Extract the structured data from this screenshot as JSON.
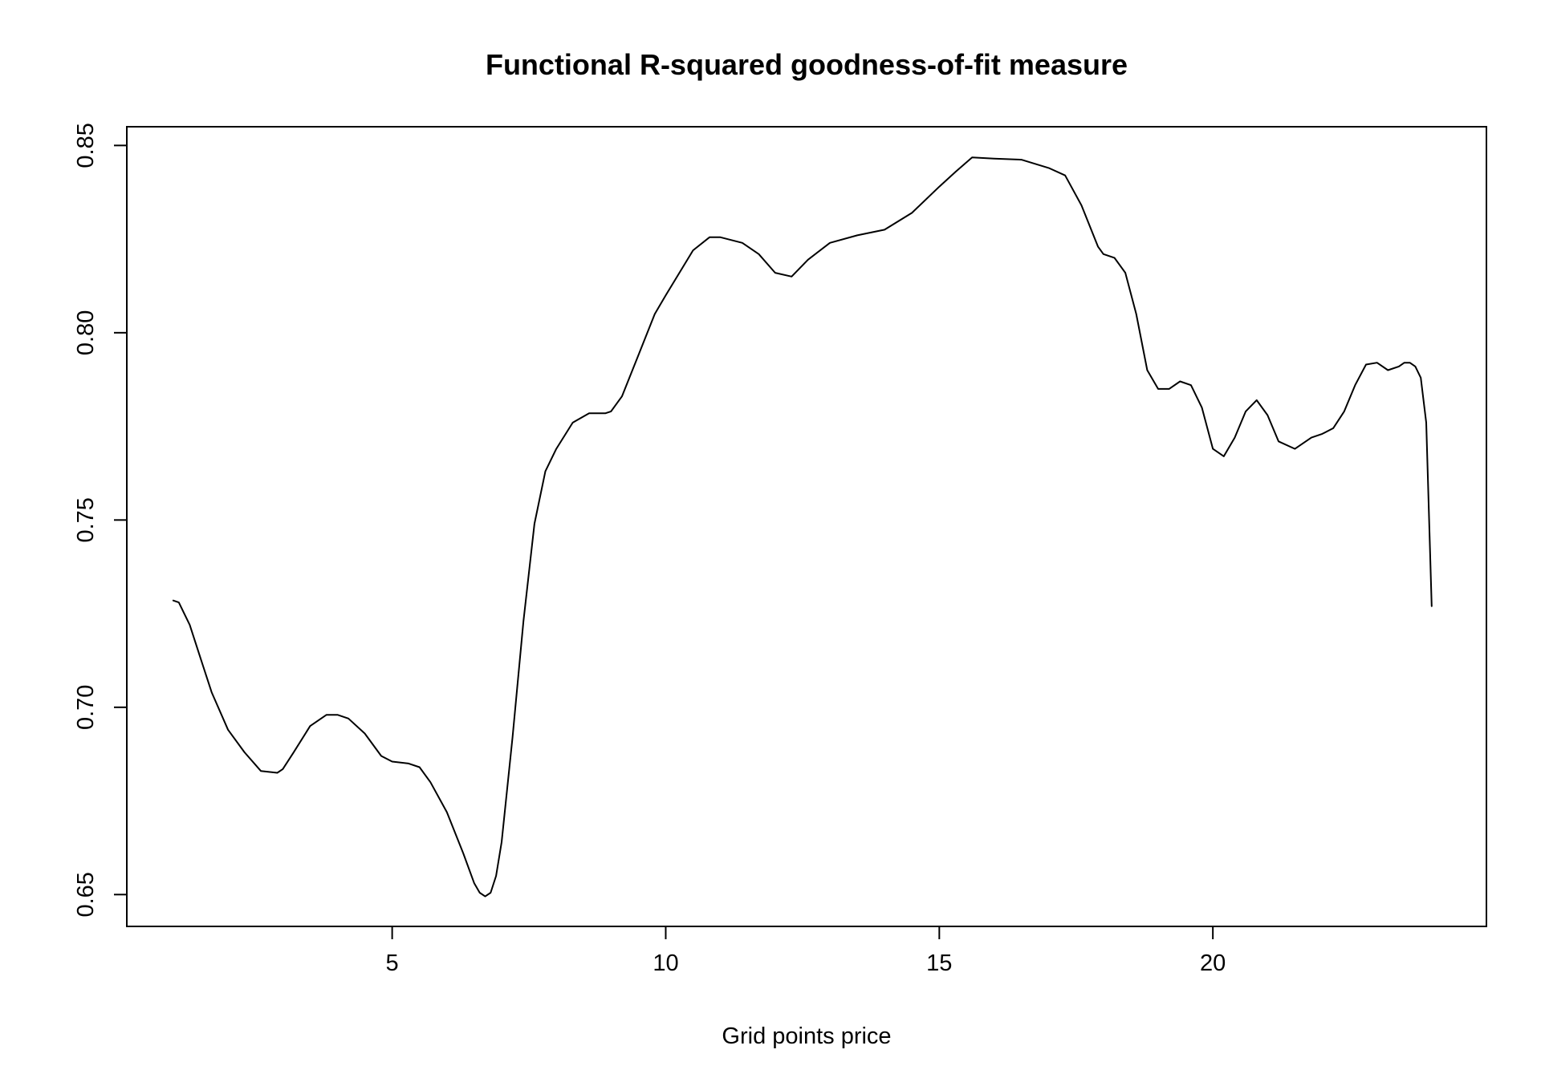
{
  "chart_data": {
    "type": "line",
    "title": "Functional R-squared goodness-of-fit measure",
    "xlabel": "Grid points price",
    "ylabel": "",
    "xlim": [
      0.15,
      25
    ],
    "ylim": [
      0.6415,
      0.855
    ],
    "grid": false,
    "legend": "none",
    "x_ticks": [
      5,
      10,
      15,
      20
    ],
    "x_tick_labels": [
      "5",
      "10",
      "15",
      "20"
    ],
    "y_ticks": [
      0.65,
      0.7,
      0.75,
      0.8,
      0.85
    ],
    "y_tick_labels": [
      "0.65",
      "0.70",
      "0.75",
      "0.80",
      "0.85"
    ],
    "series": [
      {
        "color": "#000000",
        "x": [
          1.0,
          1.1,
          1.3,
          1.5,
          1.7,
          2.0,
          2.3,
          2.6,
          2.9,
          3.0,
          3.2,
          3.5,
          3.8,
          4.0,
          4.2,
          4.5,
          4.8,
          5.0,
          5.3,
          5.5,
          5.7,
          6.0,
          6.3,
          6.5,
          6.6,
          6.7,
          6.8,
          6.9,
          7.0,
          7.2,
          7.4,
          7.6,
          7.8,
          8.0,
          8.3,
          8.6,
          8.9,
          9.0,
          9.2,
          9.5,
          9.8,
          10.0,
          10.5,
          10.8,
          11.0,
          11.4,
          11.7,
          12.0,
          12.3,
          12.6,
          13.0,
          13.5,
          14.0,
          14.5,
          15.0,
          15.3,
          15.6,
          16.0,
          16.5,
          17.0,
          17.3,
          17.6,
          17.9,
          18.0,
          18.2,
          18.4,
          18.6,
          18.8,
          19.0,
          19.2,
          19.4,
          19.6,
          19.8,
          20.0,
          20.2,
          20.4,
          20.6,
          20.8,
          21.0,
          21.2,
          21.5,
          21.8,
          22.0,
          22.2,
          22.4,
          22.6,
          22.8,
          23.0,
          23.2,
          23.4,
          23.5,
          23.6,
          23.7,
          23.8,
          23.9,
          24.0
        ],
        "y": [
          0.7285,
          0.728,
          0.722,
          0.713,
          0.704,
          0.694,
          0.688,
          0.683,
          0.6825,
          0.6835,
          0.688,
          0.695,
          0.698,
          0.698,
          0.697,
          0.693,
          0.687,
          0.6855,
          0.685,
          0.684,
          0.68,
          0.672,
          0.661,
          0.653,
          0.6505,
          0.6495,
          0.6505,
          0.655,
          0.664,
          0.692,
          0.723,
          0.749,
          0.763,
          0.769,
          0.776,
          0.7785,
          0.7785,
          0.779,
          0.783,
          0.794,
          0.805,
          0.81,
          0.822,
          0.8255,
          0.8255,
          0.824,
          0.821,
          0.816,
          0.815,
          0.8195,
          0.824,
          0.826,
          0.8275,
          0.832,
          0.839,
          0.843,
          0.8468,
          0.8465,
          0.8462,
          0.844,
          0.842,
          0.834,
          0.823,
          0.821,
          0.82,
          0.816,
          0.805,
          0.79,
          0.785,
          0.785,
          0.787,
          0.786,
          0.78,
          0.769,
          0.767,
          0.772,
          0.779,
          0.782,
          0.778,
          0.771,
          0.769,
          0.772,
          0.773,
          0.7745,
          0.779,
          0.786,
          0.7915,
          0.792,
          0.79,
          0.791,
          0.792,
          0.792,
          0.791,
          0.788,
          0.776,
          0.727
        ]
      }
    ]
  }
}
